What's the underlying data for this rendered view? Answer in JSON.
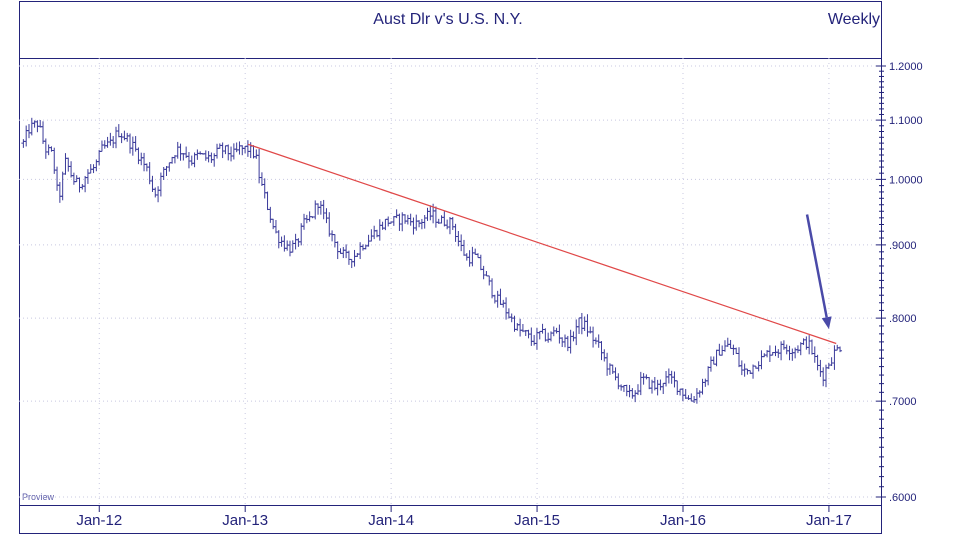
{
  "chart_data": {
    "type": "ohlc",
    "title": "Aust Dlr v's U.S. N.Y.",
    "period_label": "Weekly",
    "watermark": "Proview",
    "y_axis": {
      "scale": "log",
      "ylim": [
        0.6,
        1.2
      ],
      "ticks": [
        {
          "value": 1.2,
          "label": "1.2000"
        },
        {
          "value": 1.1,
          "label": "1.1000"
        },
        {
          "value": 1.0,
          "label": "1.0000"
        },
        {
          "value": 0.9,
          "label": ".9000"
        },
        {
          "value": 0.8,
          "label": ".8000"
        },
        {
          "value": 0.7,
          "label": ".7000"
        },
        {
          "value": 0.6,
          "label": ".6000"
        }
      ]
    },
    "x_axis": {
      "xlim": [
        2011.45,
        2017.35
      ],
      "ticks": [
        {
          "value": 2012.0,
          "label": "Jan-12"
        },
        {
          "value": 2013.0,
          "label": "Jan-13"
        },
        {
          "value": 2014.0,
          "label": "Jan-14"
        },
        {
          "value": 2015.0,
          "label": "Jan-15"
        },
        {
          "value": 2016.0,
          "label": "Jan-16"
        },
        {
          "value": 2017.0,
          "label": "Jan-17"
        }
      ]
    },
    "series_anchors": [
      [
        2011.48,
        1.06
      ],
      [
        2011.52,
        1.085
      ],
      [
        2011.58,
        1.095
      ],
      [
        2011.63,
        1.05
      ],
      [
        2011.68,
        1.04
      ],
      [
        2011.72,
        0.965
      ],
      [
        2011.77,
        1.03
      ],
      [
        2011.82,
        1.0
      ],
      [
        2011.86,
        0.99
      ],
      [
        2011.92,
        1.01
      ],
      [
        2011.97,
        1.02
      ],
      [
        2012.02,
        1.05
      ],
      [
        2012.08,
        1.06
      ],
      [
        2012.13,
        1.08
      ],
      [
        2012.18,
        1.07
      ],
      [
        2012.23,
        1.055
      ],
      [
        2012.27,
        1.04
      ],
      [
        2012.33,
        1.015
      ],
      [
        2012.38,
        0.975
      ],
      [
        2012.42,
        1.0
      ],
      [
        2012.48,
        1.03
      ],
      [
        2012.53,
        1.05
      ],
      [
        2012.58,
        1.045
      ],
      [
        2012.63,
        1.03
      ],
      [
        2012.68,
        1.04
      ],
      [
        2012.73,
        1.035
      ],
      [
        2012.78,
        1.035
      ],
      [
        2012.83,
        1.05
      ],
      [
        2012.88,
        1.045
      ],
      [
        2012.92,
        1.04
      ],
      [
        2012.96,
        1.05
      ],
      [
        2013.02,
        1.05
      ],
      [
        2013.07,
        1.04
      ],
      [
        2013.1,
        1.0
      ],
      [
        2013.15,
        0.96
      ],
      [
        2013.2,
        0.92
      ],
      [
        2013.25,
        0.905
      ],
      [
        2013.3,
        0.895
      ],
      [
        2013.35,
        0.9
      ],
      [
        2013.4,
        0.93
      ],
      [
        2013.45,
        0.94
      ],
      [
        2013.5,
        0.965
      ],
      [
        2013.55,
        0.935
      ],
      [
        2013.6,
        0.91
      ],
      [
        2013.65,
        0.89
      ],
      [
        2013.7,
        0.88
      ],
      [
        2013.75,
        0.885
      ],
      [
        2013.8,
        0.9
      ],
      [
        2013.85,
        0.91
      ],
      [
        2013.92,
        0.925
      ],
      [
        2013.97,
        0.935
      ],
      [
        2014.02,
        0.935
      ],
      [
        2014.08,
        0.94
      ],
      [
        2014.13,
        0.935
      ],
      [
        2014.18,
        0.93
      ],
      [
        2014.23,
        0.94
      ],
      [
        2014.28,
        0.945
      ],
      [
        2014.33,
        0.935
      ],
      [
        2014.38,
        0.935
      ],
      [
        2014.42,
        0.93
      ],
      [
        2014.47,
        0.9
      ],
      [
        2014.52,
        0.88
      ],
      [
        2014.57,
        0.885
      ],
      [
        2014.62,
        0.865
      ],
      [
        2014.67,
        0.845
      ],
      [
        2014.72,
        0.825
      ],
      [
        2014.77,
        0.815
      ],
      [
        2014.82,
        0.8
      ],
      [
        2014.87,
        0.785
      ],
      [
        2014.92,
        0.78
      ],
      [
        2014.97,
        0.77
      ],
      [
        2015.02,
        0.78
      ],
      [
        2015.08,
        0.775
      ],
      [
        2015.13,
        0.785
      ],
      [
        2015.18,
        0.77
      ],
      [
        2015.23,
        0.77
      ],
      [
        2015.28,
        0.795
      ],
      [
        2015.33,
        0.79
      ],
      [
        2015.38,
        0.775
      ],
      [
        2015.42,
        0.765
      ],
      [
        2015.47,
        0.745
      ],
      [
        2015.52,
        0.73
      ],
      [
        2015.57,
        0.72
      ],
      [
        2015.62,
        0.705
      ],
      [
        2015.67,
        0.71
      ],
      [
        2015.72,
        0.725
      ],
      [
        2015.77,
        0.72
      ],
      [
        2015.82,
        0.715
      ],
      [
        2015.87,
        0.725
      ],
      [
        2015.92,
        0.725
      ],
      [
        2016.0,
        0.71
      ],
      [
        2016.05,
        0.7
      ],
      [
        2016.1,
        0.71
      ],
      [
        2016.15,
        0.725
      ],
      [
        2016.2,
        0.745
      ],
      [
        2016.25,
        0.76
      ],
      [
        2016.3,
        0.765
      ],
      [
        2016.35,
        0.76
      ],
      [
        2016.4,
        0.735
      ],
      [
        2016.45,
        0.735
      ],
      [
        2016.5,
        0.745
      ],
      [
        2016.55,
        0.75
      ],
      [
        2016.6,
        0.76
      ],
      [
        2016.65,
        0.76
      ],
      [
        2016.7,
        0.765
      ],
      [
        2016.75,
        0.76
      ],
      [
        2016.8,
        0.765
      ],
      [
        2016.85,
        0.77
      ],
      [
        2016.88,
        0.76
      ],
      [
        2016.92,
        0.74
      ],
      [
        2016.96,
        0.73
      ],
      [
        2017.0,
        0.745
      ],
      [
        2017.05,
        0.76
      ],
      [
        2017.08,
        0.765
      ]
    ],
    "trendline": {
      "color": "#e04848",
      "points": [
        [
          2013.02,
          1.058
        ],
        [
          2017.05,
          0.768
        ]
      ]
    },
    "arrow": {
      "color": "#4a4aa8",
      "from": [
        2016.85,
        0.945
      ],
      "to": [
        2017.0,
        0.786
      ]
    },
    "colors": {
      "bars": "#3a3a9a",
      "frame": "#23237a",
      "grid": "#c8c8e0",
      "text": "#23237a"
    },
    "grid": "dotted-horizontal"
  }
}
